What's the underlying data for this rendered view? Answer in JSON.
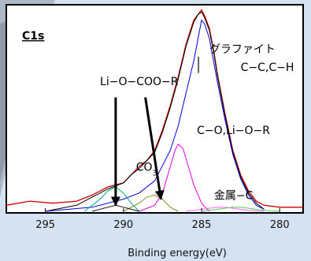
{
  "chart_data": {
    "type": "line",
    "panel_label": "C1s",
    "xlabel": "Binding energy(eV)",
    "xlim": [
      297.5,
      278.5
    ],
    "x_reversed": true,
    "ylim": [
      0,
      1
    ],
    "xticks": [
      295,
      290,
      285,
      280
    ],
    "xtick_labels": [
      "295",
      "290",
      "285",
      "280"
    ],
    "series": [
      {
        "color": "#cc0000",
        "role": "measured",
        "x": [
          297.5,
          296,
          294.5,
          293,
          292,
          291,
          290,
          289.5,
          289,
          288.5,
          288,
          287.5,
          287,
          286.5,
          286,
          285.5,
          285.2,
          285,
          284.8,
          284.5,
          284.2,
          284,
          283.5,
          283,
          282.5,
          282,
          281.5,
          281,
          280,
          279,
          278.5
        ],
        "y": [
          0.03,
          0.05,
          0.04,
          0.05,
          0.08,
          0.12,
          0.14,
          0.18,
          0.22,
          0.25,
          0.3,
          0.4,
          0.52,
          0.66,
          0.82,
          0.94,
          0.97,
          0.99,
          0.96,
          0.9,
          0.78,
          0.68,
          0.48,
          0.3,
          0.18,
          0.1,
          0.05,
          0.03,
          0.02,
          0.02,
          0.02
        ]
      },
      {
        "color": "#000000",
        "role": "fit-envelope",
        "x": [
          295,
          293,
          292,
          291,
          290,
          289.5,
          289,
          288.5,
          288,
          287.5,
          287,
          286.5,
          286,
          285.5,
          285.2,
          285,
          284.8,
          284.5,
          284.2,
          284,
          283.5,
          283,
          282.5,
          282,
          281.5,
          281
        ],
        "y": [
          0.0,
          0.03,
          0.07,
          0.11,
          0.14,
          0.18,
          0.21,
          0.25,
          0.29,
          0.39,
          0.51,
          0.65,
          0.81,
          0.93,
          0.97,
          0.98,
          0.95,
          0.89,
          0.77,
          0.67,
          0.47,
          0.29,
          0.17,
          0.09,
          0.04,
          0.01
        ]
      },
      {
        "color": "#0000dd",
        "role": "component",
        "x": [
          295,
          292,
          290,
          289,
          288,
          287,
          286.5,
          286,
          285.5,
          285.2,
          285,
          284.8,
          284.5,
          284,
          283.5,
          283,
          282.5,
          282,
          281.5,
          281
        ],
        "y": [
          0.0,
          0.02,
          0.06,
          0.09,
          0.15,
          0.3,
          0.42,
          0.58,
          0.74,
          0.86,
          0.94,
          0.92,
          0.85,
          0.64,
          0.45,
          0.28,
          0.16,
          0.08,
          0.03,
          0.01
        ]
      },
      {
        "color": "#dd00dd",
        "role": "component",
        "x": [
          289,
          288,
          287.5,
          287,
          286.7,
          286.5,
          286.2,
          286,
          285.5,
          285,
          284.5
        ],
        "y": [
          0.0,
          0.03,
          0.09,
          0.22,
          0.3,
          0.33,
          0.31,
          0.26,
          0.13,
          0.04,
          0.0
        ]
      },
      {
        "color": "#00aa77",
        "role": "component",
        "x": [
          292.5,
          291.5,
          291,
          290.5,
          290,
          289.5,
          289
        ],
        "y": [
          0.0,
          0.06,
          0.1,
          0.12,
          0.09,
          0.04,
          0.0
        ]
      },
      {
        "color": "#8a8a20",
        "role": "component",
        "x": [
          290,
          289,
          288.5,
          288,
          287.5,
          287,
          286.5
        ],
        "y": [
          0.0,
          0.04,
          0.07,
          0.08,
          0.06,
          0.02,
          0.0
        ]
      },
      {
        "color": "#111111",
        "role": "component",
        "x": [
          292,
          291,
          290.5,
          290,
          289.5,
          289
        ],
        "y": [
          0.0,
          0.02,
          0.03,
          0.02,
          0.01,
          0.0
        ]
      },
      {
        "color": "#ff66ff",
        "role": "component",
        "x": [
          286,
          285,
          284,
          283.5,
          283,
          282,
          281
        ],
        "y": [
          0.0,
          0.01,
          0.02,
          0.02,
          0.015,
          0.005,
          0.0
        ]
      },
      {
        "color": "#55cc55",
        "role": "component",
        "x": [
          285,
          284,
          283,
          282.5,
          282,
          281,
          280
        ],
        "y": [
          0.0,
          0.01,
          0.02,
          0.02,
          0.015,
          0.005,
          0.0
        ]
      }
    ],
    "annotations": [
      {
        "text": "Li−O−COO−R",
        "x": 291.5,
        "y": 0.62
      },
      {
        "text": "グラファイト",
        "x": 284.5,
        "y": 0.78
      },
      {
        "text": "C−C,C−H",
        "x": 282.5,
        "y": 0.69
      },
      {
        "text": "C−O,Li−O−R",
        "x": 285.3,
        "y": 0.38
      },
      {
        "text": "CO",
        "sub": "3",
        "x": 289.2,
        "y": 0.2
      },
      {
        "text": "金属−C",
        "x": 284.2,
        "y": 0.06
      }
    ],
    "arrows": [
      {
        "from": [
          290.5,
          0.56
        ],
        "to": [
          290.5,
          0.03
        ]
      },
      {
        "from": [
          288.6,
          0.56
        ],
        "to": [
          287.6,
          0.06
        ]
      }
    ],
    "marker_line": {
      "x": 285.2,
      "y0": 0.76,
      "y1": 0.68
    },
    "grid": false,
    "legend": "none"
  }
}
